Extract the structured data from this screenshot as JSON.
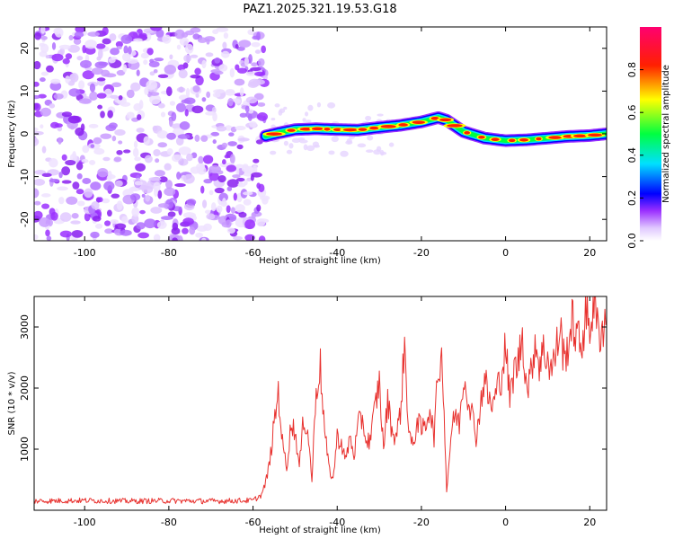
{
  "title": "PAZ1.2025.321.19.53.G18",
  "chart_data": [
    {
      "type": "heatmap",
      "name": "spectrogram",
      "xlabel": "Height of straight line (km)",
      "ylabel": "Frequency (Hz)",
      "xlim": [
        -112,
        24
      ],
      "ylim": [
        -25,
        25
      ],
      "x_ticks": [
        -100,
        -80,
        -60,
        -40,
        -20,
        0,
        20
      ],
      "y_ticks": [
        -20,
        -10,
        0,
        10,
        20
      ],
      "colorbar": {
        "label": "Normalized spectral amplitude",
        "range": [
          0,
          1
        ],
        "ticks": [
          0.0,
          0.2,
          0.4,
          0.6,
          0.8
        ],
        "tick_labels": [
          "0.0",
          "0.2",
          "0.4",
          "0.6",
          "0.8"
        ],
        "colors": [
          "#ffffff",
          "#e0c8ff",
          "#9b30ff",
          "#0000ff",
          "#00e0ff",
          "#00ff40",
          "#ffff00",
          "#ff2000",
          "#ff0070"
        ]
      },
      "ridge": {
        "height_km": [
          -57,
          -54,
          -50,
          -45,
          -40,
          -35,
          -30,
          -25,
          -20,
          -16,
          -14,
          -10,
          -5,
          0,
          5,
          10,
          15,
          20,
          24
        ],
        "frequency_hz": [
          -0.5,
          0.2,
          1.0,
          1.2,
          1.0,
          0.9,
          1.5,
          2.0,
          2.8,
          3.8,
          3.2,
          0.5,
          -1.0,
          -1.6,
          -1.4,
          -1.0,
          -0.6,
          -0.4,
          0.0
        ]
      },
      "noise_region_km": [
        -112,
        -57
      ]
    },
    {
      "type": "line",
      "name": "snr",
      "xlabel": "Height of straight line (km)",
      "ylabel": "SNR (10 * v/v)",
      "xlim": [
        -112,
        24
      ],
      "ylim": [
        0,
        3500
      ],
      "x_ticks": [
        -100,
        -80,
        -60,
        -40,
        -20,
        0,
        20
      ],
      "y_ticks": [
        1000,
        2000,
        3000
      ],
      "color": "#e8322f",
      "series": [
        {
          "name": "SNR",
          "x": [
            -112,
            -100,
            -90,
            -80,
            -70,
            -60,
            -58,
            -57,
            -56,
            -55,
            -54,
            -53,
            -52,
            -51,
            -50,
            -49,
            -48,
            -47,
            -46,
            -45,
            -44,
            -43,
            -42,
            -41,
            -40,
            -39,
            -38,
            -37,
            -36,
            -35,
            -34,
            -33,
            -32,
            -31,
            -30,
            -29,
            -28,
            -27,
            -26,
            -25,
            -24,
            -23,
            -22,
            -21,
            -20,
            -19,
            -18,
            -17,
            -16,
            -15,
            -14,
            -13,
            -12,
            -11,
            -10,
            -9,
            -8,
            -7,
            -6,
            -5,
            -4,
            -3,
            -2,
            -1,
            0,
            1,
            2,
            3,
            4,
            5,
            6,
            7,
            8,
            9,
            10,
            11,
            12,
            13,
            14,
            15,
            16,
            17,
            18,
            19,
            20,
            21,
            22,
            23,
            24
          ],
          "values": [
            150,
            160,
            150,
            155,
            150,
            160,
            250,
            450,
            800,
            1400,
            1950,
            1100,
            700,
            1400,
            1300,
            700,
            1500,
            1300,
            500,
            2000,
            2350,
            1300,
            700,
            500,
            1200,
            1100,
            800,
            1200,
            900,
            1400,
            1500,
            1100,
            1200,
            1700,
            2100,
            1000,
            1800,
            1300,
            1200,
            1600,
            2700,
            1300,
            1000,
            1500,
            1300,
            1400,
            1700,
            1200,
            2300,
            2500,
            300,
            1200,
            1600,
            1400,
            2200,
            1900,
            1600,
            1200,
            1700,
            2200,
            1800,
            1700,
            2000,
            2200,
            2700,
            1800,
            2300,
            2400,
            2900,
            2000,
            2200,
            2800,
            2400,
            2600,
            2500,
            2300,
            2600,
            3000,
            2400,
            2800,
            3100,
            2800,
            2700,
            3200,
            3000,
            3450,
            2900,
            3000,
            3100
          ]
        }
      ]
    }
  ]
}
